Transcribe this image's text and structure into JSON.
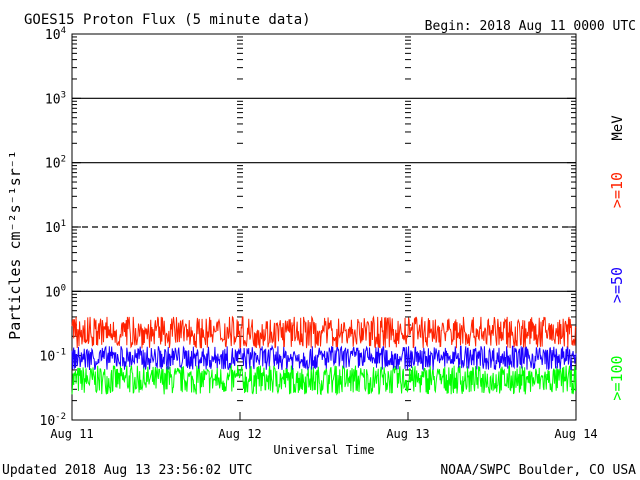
{
  "header": {
    "title": "GOES15 Proton Flux (5 minute data)",
    "begin": "Begin: 2018 Aug 11 0000 UTC"
  },
  "footer": {
    "updated": "Updated 2018 Aug 13 23:56:02 UTC",
    "credit": "NOAA/SWPC Boulder, CO USA"
  },
  "colors": {
    "ge10": "#ff2200",
    "ge50": "#1a00ff",
    "ge100": "#00ff00",
    "grid": "#000000"
  },
  "chart_data": {
    "type": "line",
    "title": "GOES15 Proton Flux (5 minute data)",
    "xlabel": "Universal Time",
    "ylabel": "Particles cm⁻²s⁻¹sr⁻¹",
    "y_scale": "log",
    "ylim": [
      0.01,
      10000
    ],
    "x_ticks": [
      "Aug 11",
      "Aug 12",
      "Aug 13",
      "Aug 14"
    ],
    "xlim": [
      "2018-08-11T00:00",
      "2018-08-14T00:00"
    ],
    "y_ticks": [
      {
        "value": 0.01,
        "base": "10",
        "exp": "-2"
      },
      {
        "value": 0.1,
        "base": "10",
        "exp": "-1"
      },
      {
        "value": 1,
        "base": "10",
        "exp": "0"
      },
      {
        "value": 10,
        "base": "10",
        "exp": "1"
      },
      {
        "value": 100,
        "base": "10",
        "exp": "2"
      },
      {
        "value": 1000,
        "base": "10",
        "exp": "3"
      },
      {
        "value": 10000,
        "base": "10",
        "exp": "4"
      }
    ],
    "threshold_lines": [
      {
        "value": 1,
        "style": "solid"
      },
      {
        "value": 10,
        "style": "dashed"
      },
      {
        "value": 100,
        "style": "solid"
      },
      {
        "value": 1000,
        "style": "solid"
      }
    ],
    "units_label": "MeV",
    "series": [
      {
        "name": ">=10",
        "color": "#ff2200",
        "typical_range": [
          0.13,
          0.4
        ]
      },
      {
        "name": ">=50",
        "color": "#1a00ff",
        "typical_range": [
          0.06,
          0.14
        ]
      },
      {
        "name": ">=100",
        "color": "#00ff00",
        "typical_range": [
          0.025,
          0.07
        ]
      }
    ],
    "grid": false,
    "legend": "right"
  }
}
